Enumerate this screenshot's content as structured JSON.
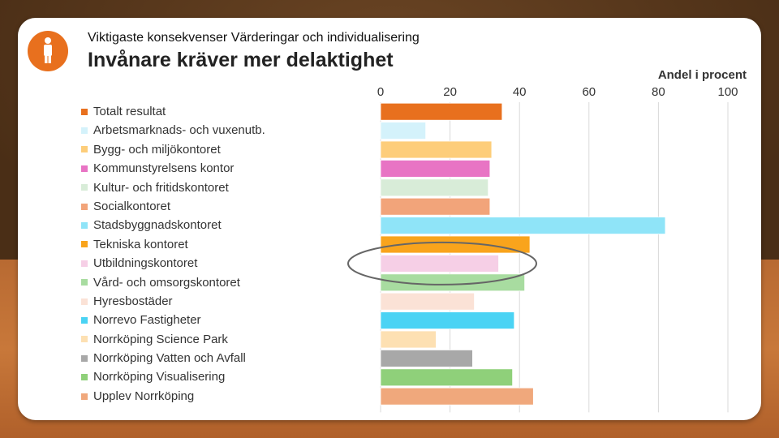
{
  "header": {
    "subtitle": "Viktigaste konsekvenser Värderingar och individualisering",
    "title": "Invånare kräver mer delaktighet"
  },
  "icons": {
    "badge": "person-icon"
  },
  "chart_data": {
    "type": "bar",
    "orientation": "horizontal",
    "unit_label": "Andel i procent",
    "xlim": [
      0,
      100
    ],
    "ticks": [
      "0",
      "20",
      "40",
      "60",
      "80",
      "100"
    ],
    "grid": true,
    "legend_position": "left",
    "highlight": "Utbildningskontoret",
    "categories": [
      "Totalt resultat",
      "Arbetsmarknads- och vuxenutb.",
      "Bygg- och miljökontoret",
      "Kommunstyrelsens kontor",
      "Kultur- och fritidskontoret",
      "Socialkontoret",
      "Stadsbyggnadskontoret",
      "Tekniska kontoret",
      "Utbildningskontoret",
      "Vård- och omsorgskontoret",
      "Hyresbostäder",
      "Norrevo Fastigheter",
      "Norrköping Science Park",
      "Norrköping Vatten och Avfall",
      "Norrköping Visualisering",
      "Upplev Norrköping"
    ],
    "values": [
      35,
      13,
      32,
      31.5,
      31,
      31.5,
      82,
      43,
      34,
      41.5,
      27,
      38.5,
      16,
      26.5,
      38,
      44
    ],
    "colors": [
      "#e8701e",
      "#d4f2fb",
      "#fdcd7a",
      "#e874c4",
      "#d8ecd8",
      "#f2a47a",
      "#8fe4f8",
      "#f9a41c",
      "#f6cfe6",
      "#a8dca0",
      "#fbe2d6",
      "#4ad3f4",
      "#fde0b2",
      "#a8a8a8",
      "#8fd07a",
      "#f0a87c"
    ]
  }
}
